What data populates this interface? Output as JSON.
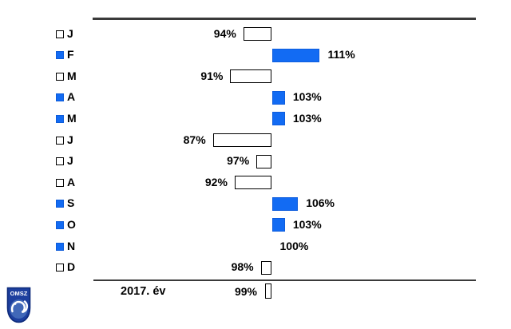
{
  "logo": {
    "text": "OMSZ"
  },
  "chart_data": {
    "type": "bar",
    "orientation": "horizontal-deviation",
    "baseline_value": 100,
    "unit": "%",
    "categories": [
      "J",
      "F",
      "M",
      "A",
      "M",
      "J",
      "J",
      "A",
      "S",
      "O",
      "N",
      "D"
    ],
    "values": [
      94,
      111,
      91,
      103,
      103,
      87,
      97,
      92,
      106,
      103,
      100,
      98
    ],
    "labels": [
      "94%",
      "111%",
      "91%",
      "103%",
      "103%",
      "87%",
      "97%",
      "92%",
      "106%",
      "103%",
      "100%",
      "98%"
    ],
    "summary": {
      "label": "2017. év",
      "value": 99,
      "display": "99%"
    },
    "colors": {
      "above_baseline_fill": "#126BF3",
      "below_baseline_fill": "#FFFFFF",
      "bar_outline": "#000000",
      "axis_line": "#3A3A3A",
      "logo_navy": "#1D3F9E"
    },
    "layout": {
      "grid": false,
      "legend": "inline-squares-left",
      "value_labels": "outside-end"
    }
  }
}
